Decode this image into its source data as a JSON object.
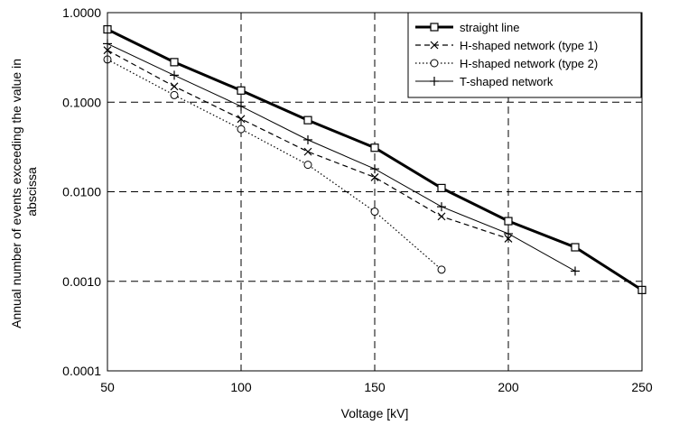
{
  "chart_data": {
    "type": "line",
    "xlabel": "Voltage [kV]",
    "ylabel_lines": [
      "Annual number of events exceeding the value in",
      "abscissa"
    ],
    "x_ticks": [
      50,
      100,
      150,
      200,
      250
    ],
    "y_ticks": [
      0.0001,
      0.001,
      0.01,
      0.1,
      1
    ],
    "y_tick_labels": [
      "0.0001",
      "0.0010",
      "0.0100",
      "0.1000",
      "1.0000"
    ],
    "xlim": [
      50,
      250
    ],
    "ylim": [
      0.0001,
      1
    ],
    "y_scale": "log",
    "grid": true,
    "grid_style": "dashed",
    "legend_position": "top-right",
    "series": [
      {
        "name": "straight line",
        "marker": "square",
        "line": "solid-thick",
        "x": [
          50,
          75,
          100,
          125,
          150,
          175,
          200,
          225,
          250
        ],
        "y": [
          0.65,
          0.28,
          0.135,
          0.063,
          0.031,
          0.011,
          0.0047,
          0.0024,
          0.0008
        ]
      },
      {
        "name": "H-shaped network (type 1)",
        "marker": "x",
        "line": "dashed",
        "x": [
          50,
          75,
          100,
          125,
          150,
          175,
          200
        ],
        "y": [
          0.38,
          0.15,
          0.065,
          0.028,
          0.0145,
          0.0053,
          0.003
        ]
      },
      {
        "name": "H-shaped network (type 2)",
        "marker": "circle",
        "line": "dotted",
        "x": [
          50,
          75,
          100,
          125,
          150,
          175
        ],
        "y": [
          0.3,
          0.12,
          0.05,
          0.02,
          0.006,
          0.00135
        ]
      },
      {
        "name": "T-shaped network",
        "marker": "plus",
        "line": "solid-thin",
        "x": [
          50,
          75,
          100,
          125,
          150,
          175,
          200,
          225
        ],
        "y": [
          0.45,
          0.2,
          0.09,
          0.038,
          0.018,
          0.0068,
          0.0034,
          0.0013
        ]
      }
    ]
  }
}
